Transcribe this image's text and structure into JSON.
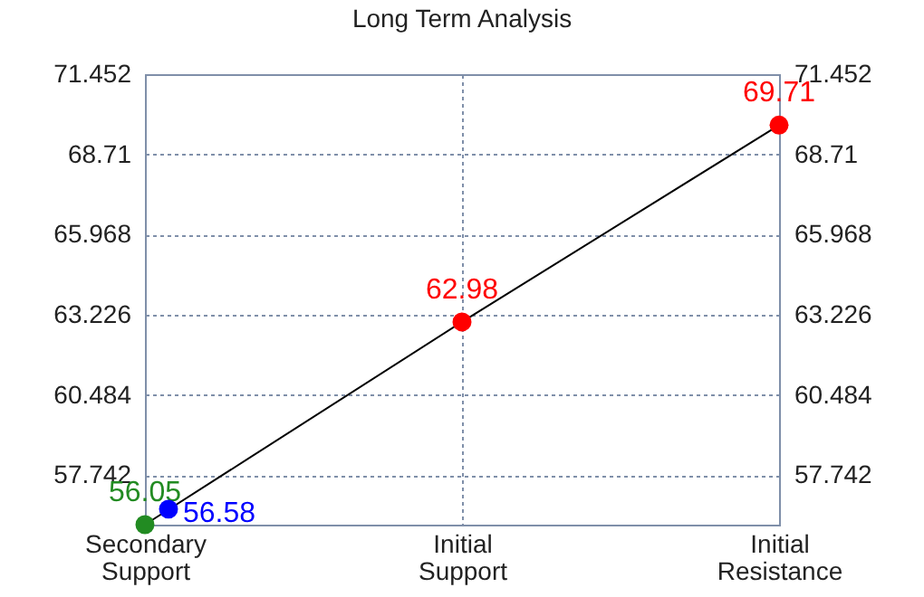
{
  "chart_data": {
    "type": "line",
    "title": "Long Term Analysis",
    "categories": [
      "Secondary Support",
      "Initial Support",
      "Initial Resistance"
    ],
    "ylim": [
      56.05,
      71.452
    ],
    "yticks": [
      57.742,
      60.484,
      63.226,
      65.968,
      68.71,
      71.452
    ],
    "y2lim": [
      56.05,
      71.452
    ],
    "y2ticks": [
      57.742,
      60.484,
      63.226,
      65.968,
      68.71,
      71.452
    ],
    "grid": true,
    "series": [
      {
        "color": "#000000",
        "values": [
          56.05,
          62.98,
          69.71
        ]
      },
      {
        "type": "scatter",
        "marker": "circle",
        "x": [
          "Secondary Support",
          "Initial Support",
          "Initial Resistance"
        ],
        "values": [
          56.05,
          62.98,
          69.71
        ],
        "value_labels": [
          "56.05",
          "62.98",
          "69.71"
        ],
        "colors": [
          "#228b22",
          "#ff0000",
          "#ff0000"
        ]
      },
      {
        "type": "scatter",
        "marker": "circle",
        "x": [
          "Secondary Support"
        ],
        "values": [
          56.58
        ],
        "value_labels": [
          "56.58"
        ],
        "color": "#0000ff"
      }
    ]
  }
}
